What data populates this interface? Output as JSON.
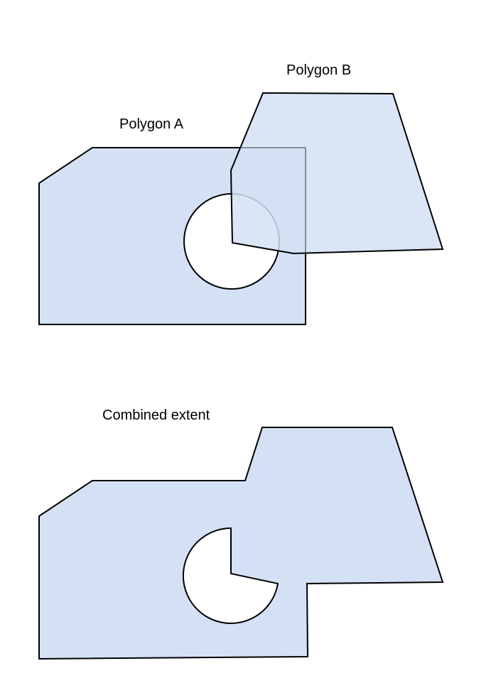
{
  "labels": {
    "polygon_a": "Polygon A",
    "polygon_b": "Polygon B",
    "combined": "Combined extent"
  },
  "colors": {
    "fill": "#d4e1f5",
    "fill_overlap": "#c5d6f2",
    "stroke": "#000000",
    "background": "#ffffff"
  }
}
